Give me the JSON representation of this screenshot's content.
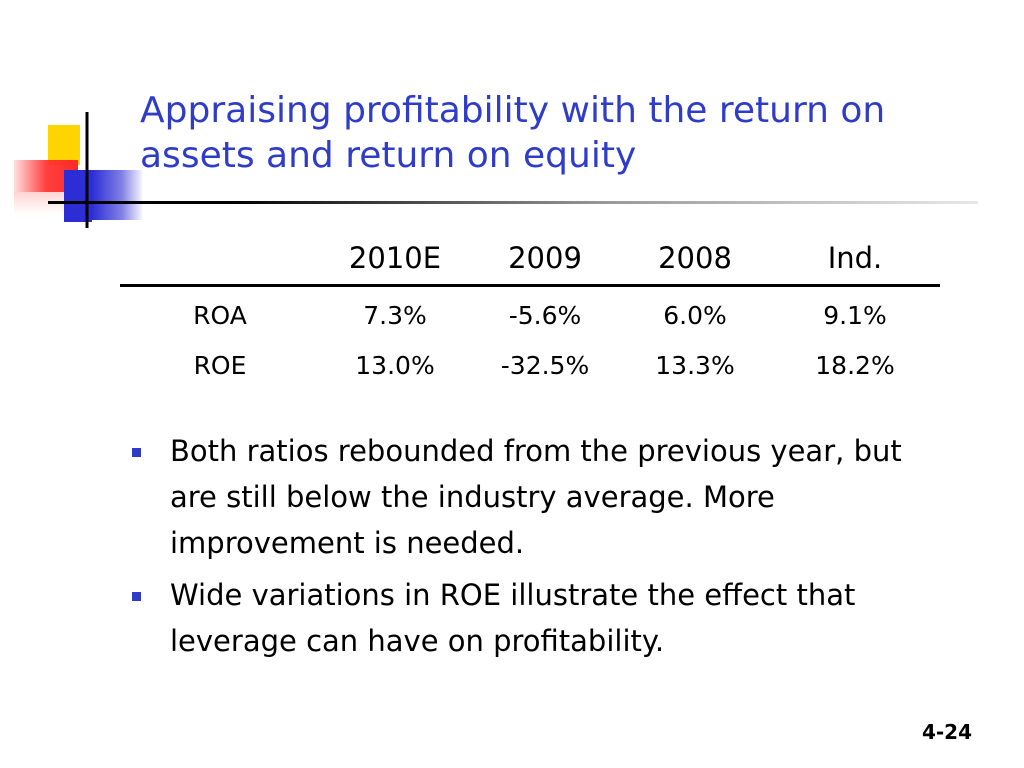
{
  "slide": {
    "title": "Appraising profitability with the return on assets and return on equity",
    "page_number": "4-24"
  },
  "table": {
    "headers": [
      "",
      "2010E",
      "2009",
      "2008",
      "Ind."
    ],
    "rows": [
      {
        "label": "ROA",
        "values": [
          "7.3%",
          "-5.6%",
          "6.0%",
          "9.1%"
        ]
      },
      {
        "label": "ROE",
        "values": [
          "13.0%",
          "-32.5%",
          "13.3%",
          "18.2%"
        ]
      }
    ]
  },
  "bullets": [
    "Both ratios rebounded from the previous year, but are still below the industry average.  More improvement is needed.",
    "Wide variations in ROE illustrate the effect that leverage can have on profitability."
  ],
  "colors": {
    "title": "#2f3cc8",
    "accent_yellow": "#ffd400",
    "accent_red": "#ff2a2a",
    "accent_blue": "#2d2dd6"
  }
}
